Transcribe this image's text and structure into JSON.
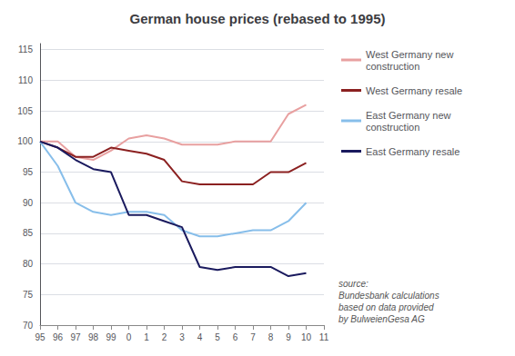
{
  "chart_data": {
    "type": "line",
    "title": "German house prices (rebased to 1995)",
    "categories": [
      "95",
      "96",
      "97",
      "98",
      "99",
      "0",
      "1",
      "2",
      "3",
      "4",
      "5",
      "6",
      "7",
      "8",
      "9",
      "10",
      "11"
    ],
    "series": [
      {
        "name": "West Germany new\nconstruction",
        "color": "#e8a0a0",
        "values": [
          100,
          100,
          97.5,
          97,
          98.5,
          100.5,
          101,
          100.5,
          99.5,
          99.5,
          99.5,
          100,
          100,
          100,
          104.5,
          106,
          null
        ]
      },
      {
        "name": "West Germany resale",
        "color": "#8B2020",
        "values": [
          100,
          99,
          97.5,
          97.5,
          99,
          98.5,
          98,
          97,
          93.5,
          93,
          93,
          93,
          93,
          95,
          95,
          96.5,
          null
        ]
      },
      {
        "name": "East Germany new\nconstruction",
        "color": "#87BEEA",
        "values": [
          100,
          96,
          90,
          88.5,
          88,
          88.5,
          88.5,
          88,
          85.5,
          84.5,
          84.5,
          85,
          85.5,
          85.5,
          87,
          90,
          null
        ]
      },
      {
        "name": "East Germany resale",
        "color": "#1a1a5e",
        "values": [
          100,
          99,
          97,
          95.5,
          95,
          88,
          88,
          87,
          86,
          79.5,
          79,
          79.5,
          79.5,
          79.5,
          78,
          78.5,
          null
        ]
      }
    ],
    "ylim": [
      70,
      116
    ],
    "yticks": [
      70,
      75,
      80,
      85,
      90,
      95,
      100,
      105,
      110,
      115
    ],
    "grid": true,
    "legend": "right",
    "annotations": [
      "source:\nBundesbank calculations\nbased on data provided\nby BulweienGesa AG"
    ]
  }
}
